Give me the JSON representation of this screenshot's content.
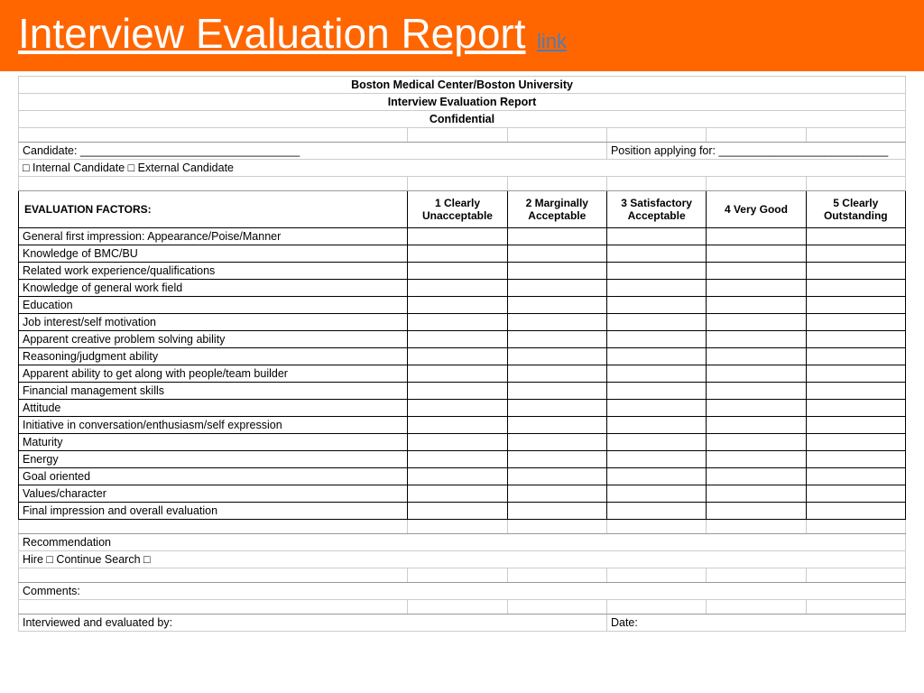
{
  "header": {
    "title": "Interview Evaluation Report",
    "link_text": "link"
  },
  "document_header": {
    "org": "Boston Medical Center/Boston University",
    "report_title": "Interview Evaluation Report",
    "confidential": "Confidential"
  },
  "fields": {
    "candidate": "Candidate: ___________________________________",
    "position": "Position applying for: ___________________________",
    "candidate_type": "□ Internal Candidate      □ External Candidate"
  },
  "table": {
    "factor_header": "EVALUATION FACTORS:",
    "ratings": [
      "1 Clearly Unacceptable",
      "2 Marginally Acceptable",
      "3 Satisfactory Acceptable",
      "4 Very Good",
      "5 Clearly Outstanding"
    ],
    "factors": [
      "General first impression: Appearance/Poise/Manner",
      "Knowledge of BMC/BU",
      "Related work experience/qualifications",
      "Knowledge of general work field",
      "Education",
      "Job interest/self motivation",
      "Apparent creative problem solving ability",
      "Reasoning/judgment ability",
      "Apparent ability to get along with people/team builder",
      "Financial management skills",
      "Attitude",
      "Initiative in conversation/enthusiasm/self expression",
      "Maturity",
      "Energy",
      "Goal oriented",
      "Values/character",
      "Final impression and overall evaluation"
    ]
  },
  "footer": {
    "recommendation": "Recommendation",
    "hire_line": "Hire □              Continue Search □",
    "comments": "Comments:",
    "interviewed_by": "Interviewed and evaluated by:",
    "date": "Date:"
  },
  "colors": {
    "header_bg": "#ff6600",
    "link_color": "#4a7db8"
  }
}
